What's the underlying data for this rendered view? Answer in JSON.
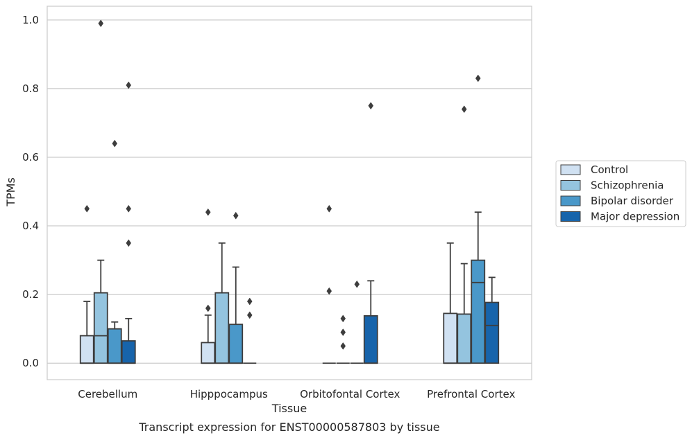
{
  "chart_data": {
    "type": "box",
    "caption": "Transcript expression for ENST00000587803 by tissue",
    "xlabel": "Tissue",
    "ylabel": "TPMs",
    "ylim": [
      -0.048,
      1.04
    ],
    "yticks": [
      "0.0",
      "0.2",
      "0.4",
      "0.6",
      "0.8",
      "1.0"
    ],
    "ytick_values": [
      0.0,
      0.2,
      0.4,
      0.6,
      0.8,
      1.0
    ],
    "grid": "horizontal",
    "legend_position": "right",
    "categories": [
      "Cerebellum",
      "Hipppocampus",
      "Orbitofontal Cortex",
      "Prefrontal Cortex"
    ],
    "series": [
      {
        "name": "Control",
        "color": "#d0e1f2",
        "boxes": [
          {
            "q1": 0.0,
            "median": 0.0,
            "q3": 0.08,
            "whisker_low": 0.0,
            "whisker_high": 0.18,
            "outliers": [
              0.45
            ]
          },
          {
            "q1": 0.0,
            "median": 0.0,
            "q3": 0.06,
            "whisker_low": 0.0,
            "whisker_high": 0.14,
            "outliers": [
              0.16,
              0.44
            ]
          },
          {
            "q1": 0.0,
            "median": 0.0,
            "q3": 0.0,
            "whisker_low": 0.0,
            "whisker_high": 0.0,
            "outliers": [
              0.21,
              0.45
            ]
          },
          {
            "q1": 0.0,
            "median": 0.0,
            "q3": 0.145,
            "whisker_low": 0.0,
            "whisker_high": 0.35,
            "outliers": []
          }
        ]
      },
      {
        "name": "Schizophrenia",
        "color": "#94c4df",
        "boxes": [
          {
            "q1": 0.0,
            "median": 0.08,
            "q3": 0.205,
            "whisker_low": 0.0,
            "whisker_high": 0.3,
            "outliers": [
              0.99
            ]
          },
          {
            "q1": 0.0,
            "median": 0.0,
            "q3": 0.205,
            "whisker_low": 0.0,
            "whisker_high": 0.35,
            "outliers": []
          },
          {
            "q1": 0.0,
            "median": 0.0,
            "q3": 0.0,
            "whisker_low": 0.0,
            "whisker_high": 0.0,
            "outliers": [
              0.05,
              0.09,
              0.13
            ]
          },
          {
            "q1": 0.0,
            "median": 0.0,
            "q3": 0.143,
            "whisker_low": 0.0,
            "whisker_high": 0.29,
            "outliers": [
              0.74
            ]
          }
        ]
      },
      {
        "name": "Bipolar disorder",
        "color": "#4a98c9",
        "boxes": [
          {
            "q1": 0.0,
            "median": 0.0,
            "q3": 0.1,
            "whisker_low": 0.0,
            "whisker_high": 0.12,
            "outliers": [
              0.64
            ]
          },
          {
            "q1": 0.0,
            "median": 0.0,
            "q3": 0.113,
            "whisker_low": 0.0,
            "whisker_high": 0.28,
            "outliers": [
              0.43
            ]
          },
          {
            "q1": 0.0,
            "median": 0.0,
            "q3": 0.0,
            "whisker_low": 0.0,
            "whisker_high": 0.0,
            "outliers": [
              0.23
            ]
          },
          {
            "q1": 0.0,
            "median": 0.235,
            "q3": 0.3,
            "whisker_low": 0.0,
            "whisker_high": 0.44,
            "outliers": [
              0.83
            ]
          }
        ]
      },
      {
        "name": "Major depression",
        "color": "#1764ab",
        "boxes": [
          {
            "q1": 0.0,
            "median": 0.0,
            "q3": 0.065,
            "whisker_low": 0.0,
            "whisker_high": 0.13,
            "outliers": [
              0.35,
              0.45,
              0.81
            ]
          },
          {
            "q1": 0.0,
            "median": 0.0,
            "q3": 0.0,
            "whisker_low": 0.0,
            "whisker_high": 0.0,
            "outliers": [
              0.14,
              0.18
            ]
          },
          {
            "q1": 0.0,
            "median": 0.0,
            "q3": 0.138,
            "whisker_low": 0.0,
            "whisker_high": 0.24,
            "outliers": [
              0.75
            ]
          },
          {
            "q1": 0.0,
            "median": 0.11,
            "q3": 0.177,
            "whisker_low": 0.0,
            "whisker_high": 0.25,
            "outliers": []
          }
        ]
      }
    ],
    "box_edge_color": "#3d3d3d",
    "grid_color": "#cccccc",
    "axes_edge_color": "#cccccc"
  }
}
